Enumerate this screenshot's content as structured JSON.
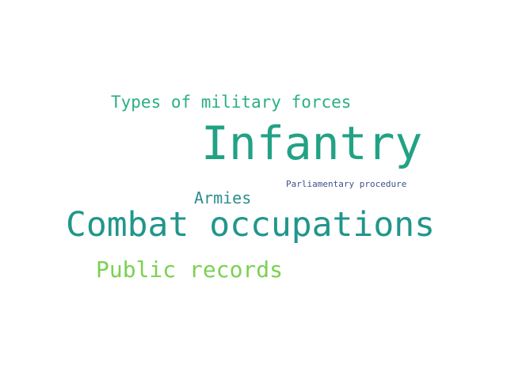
{
  "words": [
    {
      "text": "Types of military forces",
      "color": "#2ab07f"
    },
    {
      "text": "Infantry",
      "color": "#22a284"
    },
    {
      "text": "Parliamentary procedure",
      "color": "#3b528b"
    },
    {
      "text": "Armies",
      "color": "#2c8c8d"
    },
    {
      "text": "Combat occupations",
      "color": "#21968b"
    },
    {
      "text": "Public records",
      "color": "#7ad151"
    }
  ]
}
